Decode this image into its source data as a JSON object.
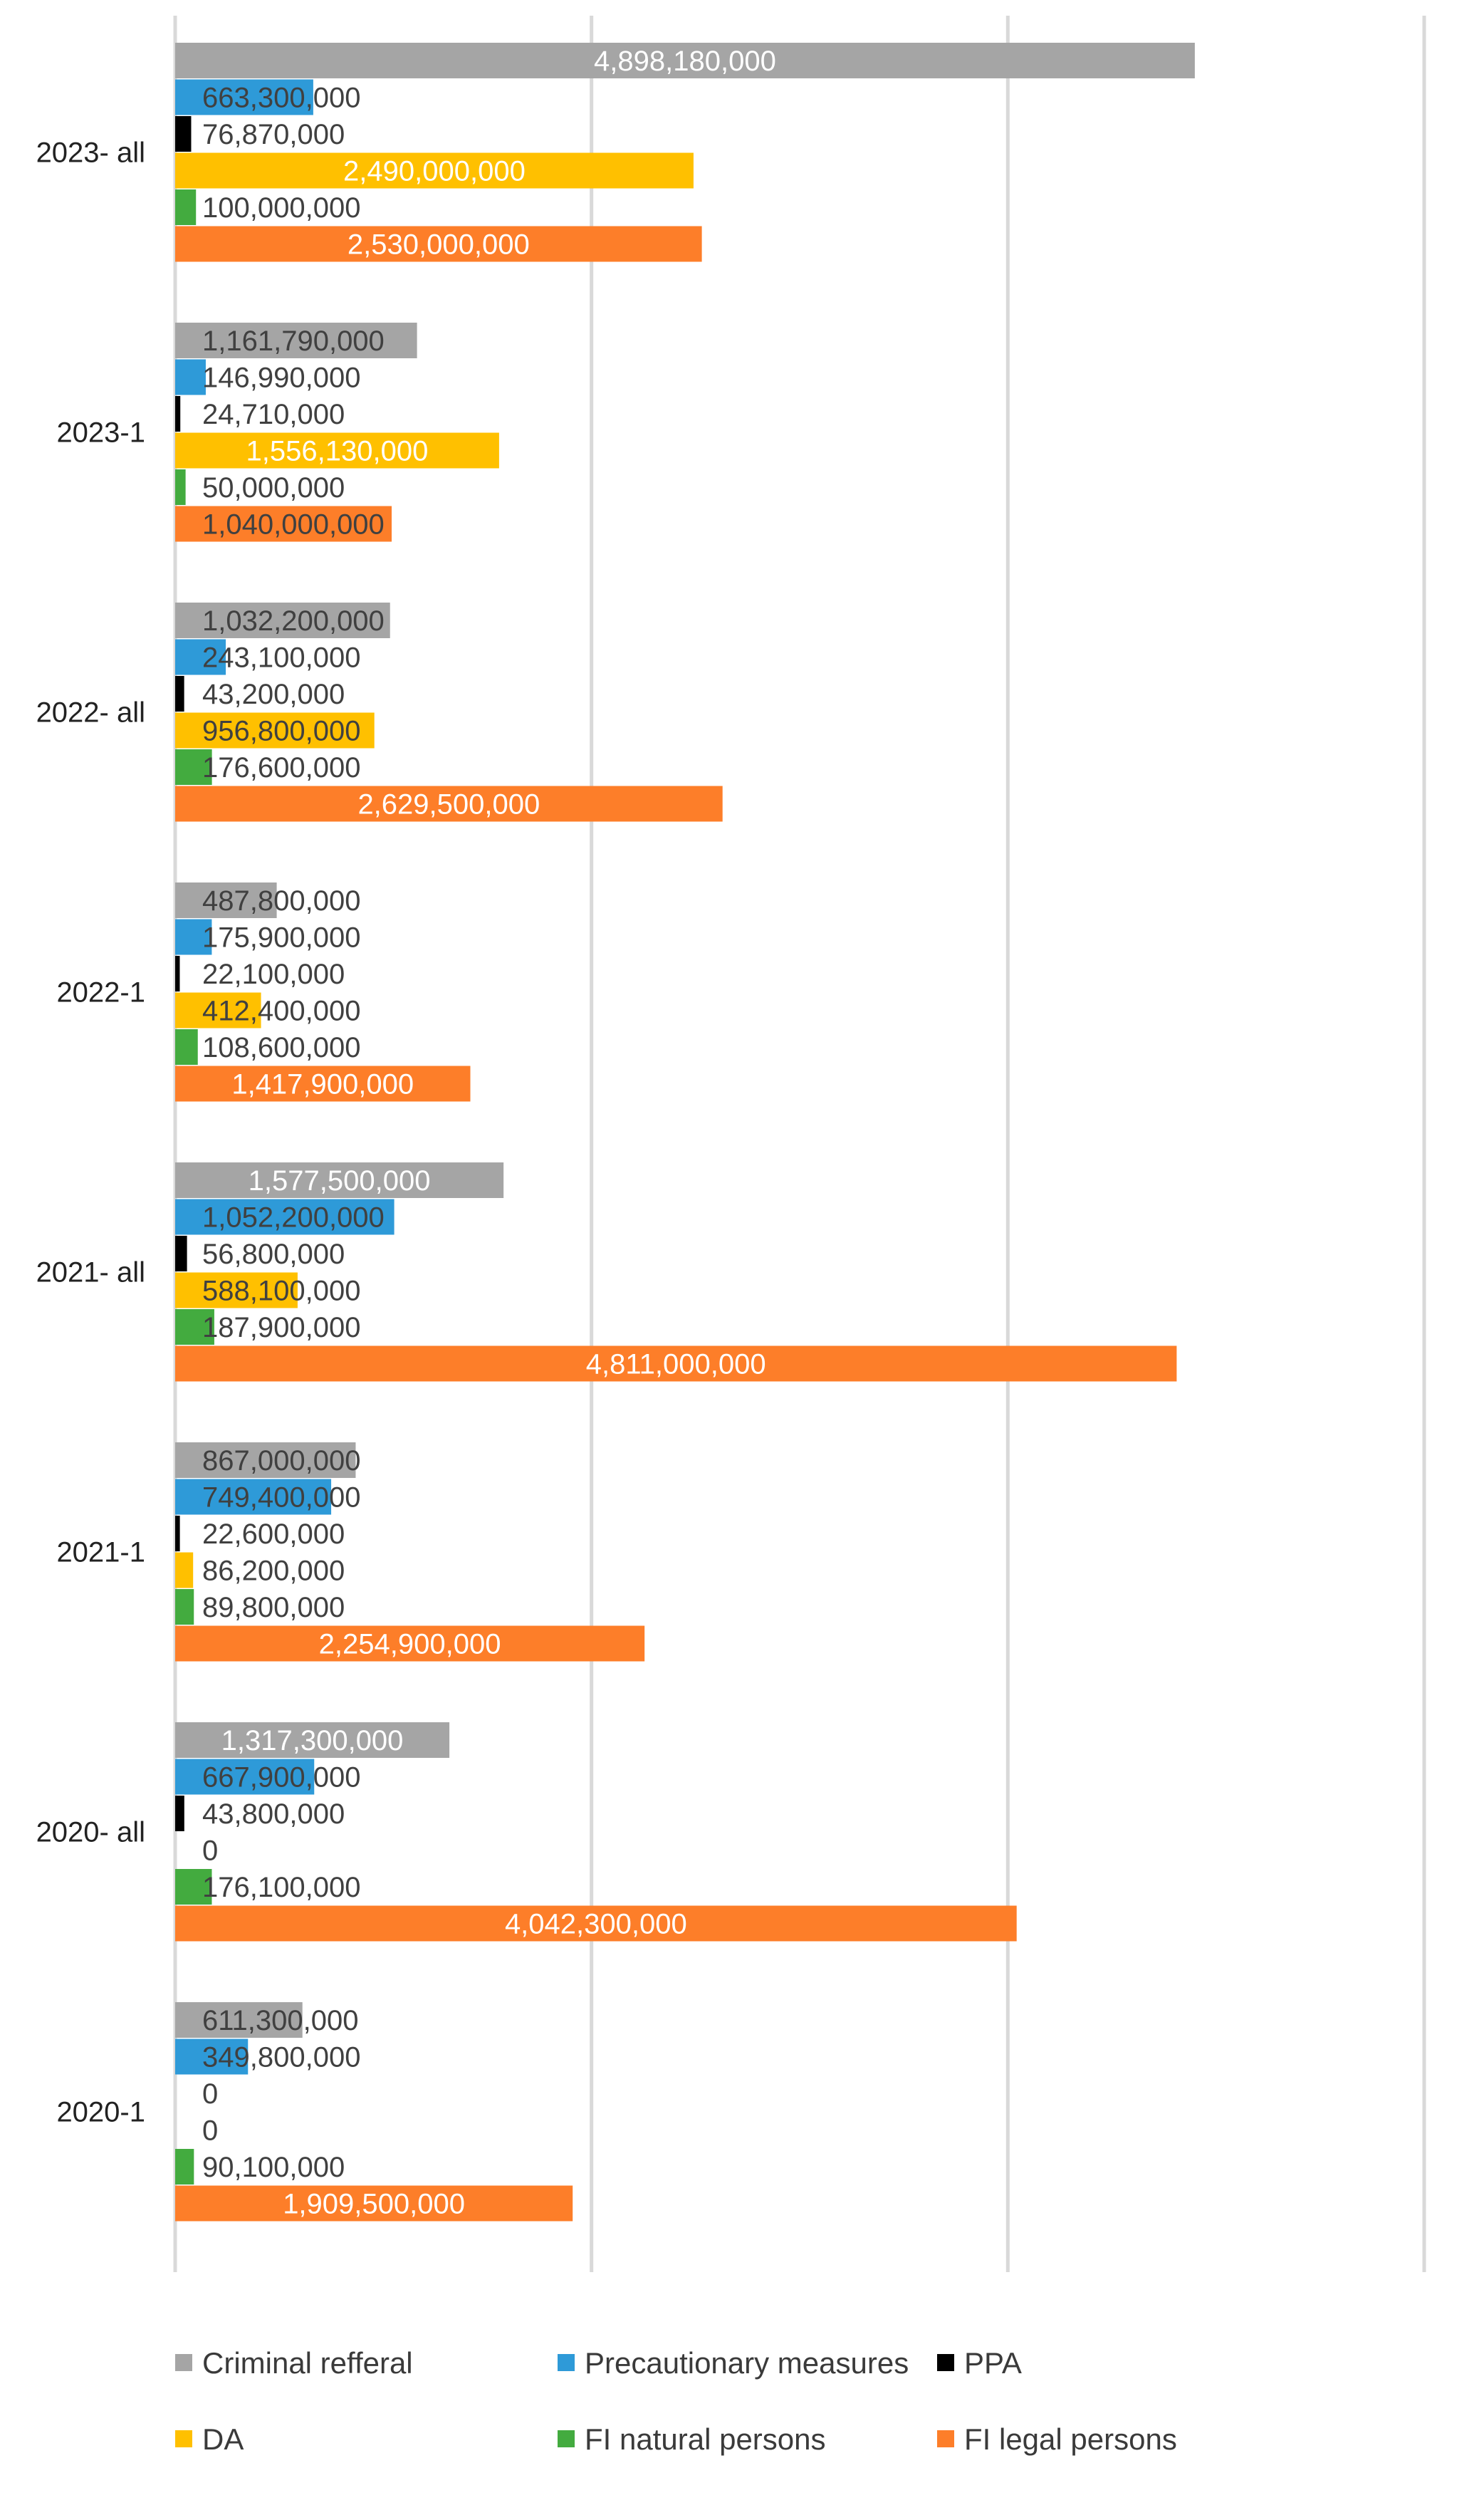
{
  "chart_data": {
    "type": "bar",
    "orientation": "horizontal",
    "title": "",
    "xlabel": "",
    "ylabel": "",
    "xlim": [
      0,
      6000000000
    ],
    "grid": true,
    "legend_position": "bottom",
    "categories": [
      "2023- all",
      "2023-1",
      "2022- all",
      "2022-1",
      "2021- all",
      "2021-1",
      "2020- all",
      "2020-1"
    ],
    "series": [
      {
        "name": "Criminal refferal",
        "color": "#a5a5a5",
        "values": [
          4898180000,
          1161790000,
          1032200000,
          487800000,
          1577500000,
          867000000,
          1317300000,
          611300000
        ],
        "labels": [
          "4,898,180,000",
          "1,161,790,000",
          "1,032,200,000",
          "487,800,000",
          "1,577,500,000",
          "867,000,000",
          "1,317,300,000",
          "611,300,000"
        ]
      },
      {
        "name": "Precautionary measures",
        "color": "#2e9ad8",
        "values": [
          663300000,
          146990000,
          243100000,
          175900000,
          1052200000,
          749400000,
          667900000,
          349800000
        ],
        "labels": [
          "663,300,000",
          "146,990,000",
          "243,100,000",
          "175,900,000",
          "1,052,200,000",
          "749,400,000",
          "667,900,000",
          "349,800,000"
        ]
      },
      {
        "name": "PPA",
        "color": "#000000",
        "values": [
          76870000,
          24710000,
          43200000,
          22100000,
          56800000,
          22600000,
          43800000,
          0
        ],
        "labels": [
          "76,870,000",
          "24,710,000",
          "43,200,000",
          "22,100,000",
          "56,800,000",
          "22,600,000",
          "43,800,000",
          "0"
        ]
      },
      {
        "name": "DA",
        "color": "#ffc000",
        "values": [
          2490000000,
          1556130000,
          956800000,
          412400000,
          588100000,
          86200000,
          0,
          0
        ],
        "labels": [
          "2,490,000,000",
          "1,556,130,000",
          "956,800,000",
          "412,400,000",
          "588,100,000",
          "86,200,000",
          "0",
          "0"
        ]
      },
      {
        "name": "FI natural persons",
        "color": "#43ab3f",
        "values": [
          100000000,
          50000000,
          176600000,
          108600000,
          187900000,
          89800000,
          176100000,
          90100000
        ],
        "labels": [
          "100,000,000",
          "50,000,000",
          "176,600,000",
          "108,600,000",
          "187,900,000",
          "89,800,000",
          "176,100,000",
          "90,100,000"
        ]
      },
      {
        "name": "FI legal persons",
        "color": "#fd7e29",
        "values": [
          2530000000,
          1040000000,
          2629500000,
          1417900000,
          4811000000,
          2254900000,
          4042300000,
          1909500000
        ],
        "labels": [
          "2,530,000,000",
          "1,040,000,000",
          "2,629,500,000",
          "1,417,900,000",
          "4,811,000,000",
          "2,254,900,000",
          "4,042,300,000",
          "1,909,500,000"
        ]
      }
    ]
  }
}
